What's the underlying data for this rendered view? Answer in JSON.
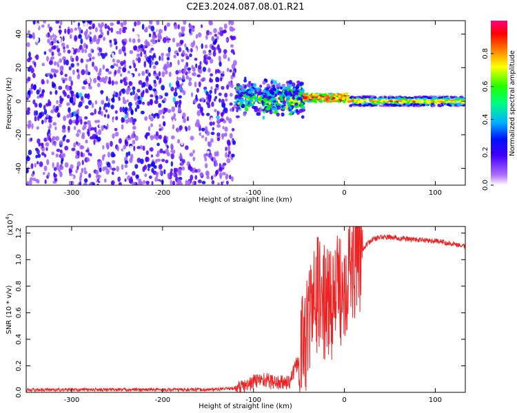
{
  "title": "C2E3.2024.087.08.01.R21",
  "chart_data": [
    {
      "type": "heatmap",
      "xlabel": "Height of straight line (km)",
      "ylabel": "Frequency (Hz)",
      "xlim": [
        -350,
        133
      ],
      "ylim": [
        -50,
        48
      ],
      "xticks": [
        -300,
        -200,
        -100,
        0,
        100
      ],
      "yticks": [
        -40,
        -20,
        0,
        20,
        40
      ],
      "colorbar": {
        "label": "Normalized spectral amplitude",
        "range": [
          0,
          1
        ],
        "ticks": [
          "0.0",
          "0.2",
          "0.4",
          "0.6",
          "0.8"
        ],
        "colors": [
          "#ffffff",
          "#a060ff",
          "#5000ff",
          "#0000ff",
          "#00c8ff",
          "#00ff00",
          "#ffff00",
          "#ff8000",
          "#ff0000",
          "#ff0080"
        ]
      },
      "regions": [
        {
          "x": [
            -350,
            -120
          ],
          "freq_spread_hz": [
            -50,
            48
          ],
          "amplitude": "0.1-0.4",
          "description_level": "noise"
        },
        {
          "x": [
            -120,
            -45
          ],
          "freq_center_hz": 2,
          "freq_spread_hz": [
            -12,
            12
          ],
          "amplitude": "0.4-0.7"
        },
        {
          "x": [
            -45,
            5
          ],
          "freq_center_hz": 2,
          "freq_spread_hz": [
            -4,
            6
          ],
          "amplitude": "0.8-1.0"
        },
        {
          "x": [
            5,
            133
          ],
          "freq_center_hz": 0,
          "freq_spread_hz": [
            -3,
            3
          ],
          "amplitude": "0.6-0.9"
        }
      ]
    },
    {
      "type": "line",
      "xlabel": "Height of straight line (km)",
      "ylabel": "SNR (10 * v/v)",
      "yscale_label": "(x10",
      "yscale_exp": "4",
      "xlim": [
        -350,
        133
      ],
      "ylim": [
        0,
        1.25
      ],
      "xticks": [
        -300,
        -200,
        -100,
        0,
        100
      ],
      "yticks": [
        "0.0",
        "0.2",
        "0.4",
        "0.6",
        "0.8",
        "1.0",
        "1.2"
      ],
      "color": "#ee2222",
      "series": [
        {
          "x": [
            -350,
            -300,
            -250,
            -200,
            -150,
            -120,
            -110,
            -100,
            -90,
            -80,
            -70,
            -60,
            -50,
            -40,
            -30,
            -20,
            -10,
            0,
            10,
            20,
            30,
            40,
            50,
            60,
            80,
            100,
            120,
            133
          ],
          "y": [
            0.02,
            0.02,
            0.02,
            0.02,
            0.02,
            0.03,
            0.04,
            0.08,
            0.1,
            0.08,
            0.07,
            0.08,
            0.25,
            0.5,
            0.75,
            0.65,
            0.72,
            0.85,
            0.97,
            1.08,
            1.15,
            1.17,
            1.17,
            1.16,
            1.15,
            1.14,
            1.12,
            1.1
          ]
        }
      ]
    }
  ]
}
